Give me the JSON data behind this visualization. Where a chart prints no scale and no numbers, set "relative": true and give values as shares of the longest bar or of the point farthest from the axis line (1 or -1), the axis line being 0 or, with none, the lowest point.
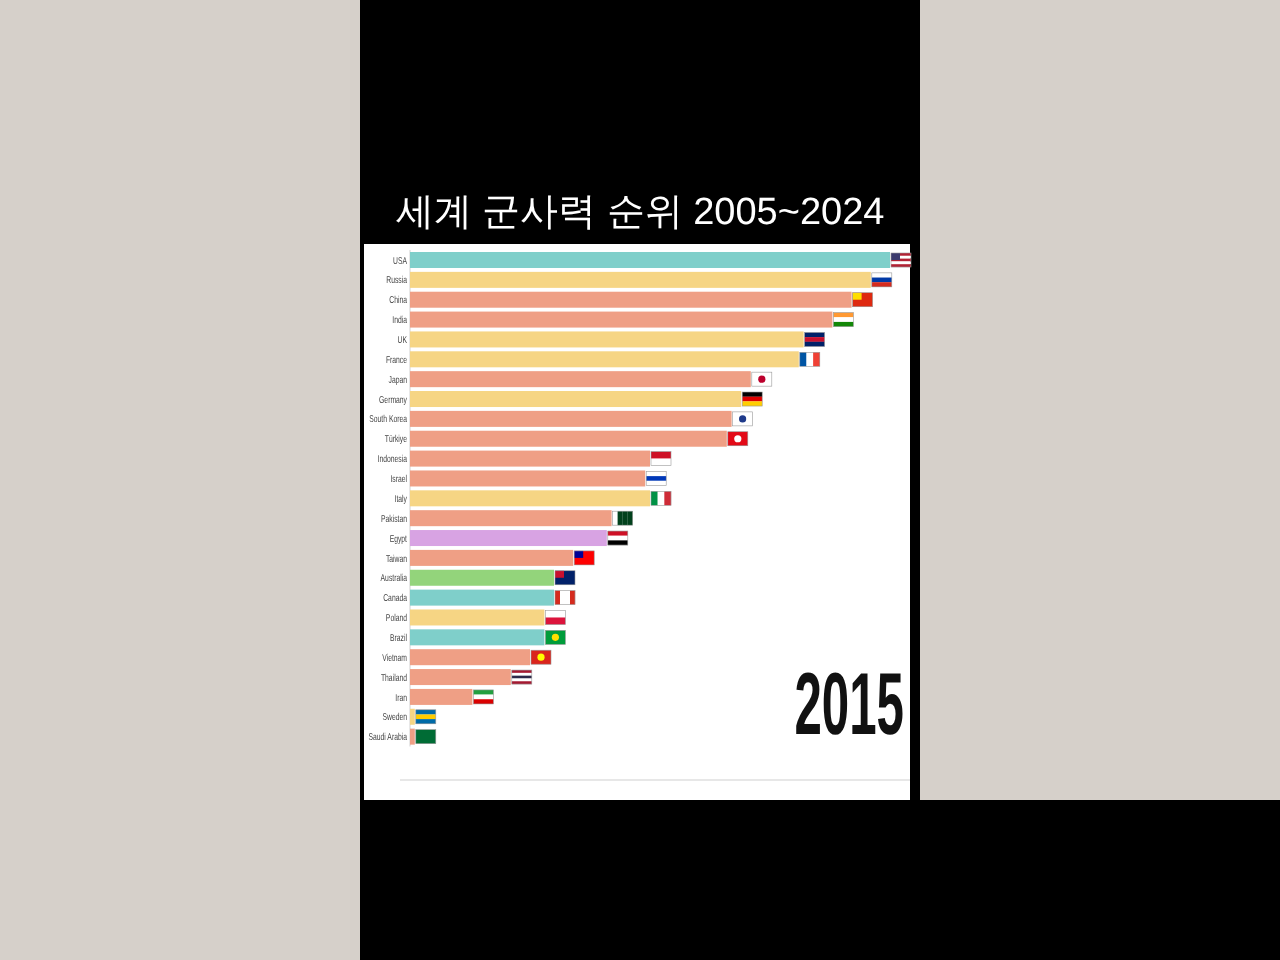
{
  "chart_data": {
    "type": "bar",
    "orientation": "horizontal",
    "relative": true,
    "title": "세계 군사력 순위 2005~2024",
    "categories": [
      "USA",
      "Russia",
      "China",
      "India",
      "UK",
      "France",
      "Japan",
      "Germany",
      "South Korea",
      "Türkiye",
      "Indonesia",
      "Israel",
      "Italy",
      "Pakistan",
      "Egypt",
      "Taiwan",
      "Australia",
      "Canada",
      "Poland",
      "Brazil",
      "Vietnam",
      "Thailand",
      "Iran",
      "Sweden",
      "Saudi Arabia"
    ],
    "values": [
      1,
      0.96,
      0.92,
      0.88,
      0.82,
      0.81,
      0.71,
      0.69,
      0.67,
      0.66,
      0.5,
      0.49,
      0.5,
      0.42,
      0.41,
      0.34,
      0.3,
      0.3,
      0.28,
      0.28,
      0.25,
      0.21,
      0.13,
      0.01,
      0.01
    ],
    "colors": [
      "#7fcfca",
      "#f6d584",
      "#ef9f85",
      "#ef9f85",
      "#f6d584",
      "#f6d584",
      "#ef9f85",
      "#f6d584",
      "#ef9f85",
      "#ef9f85",
      "#ef9f85",
      "#ef9f85",
      "#f6d584",
      "#ef9f85",
      "#d8a3e3",
      "#ef9f85",
      "#93d47b",
      "#7fcfca",
      "#f6d584",
      "#7fcfca",
      "#ef9f85",
      "#ef9f85",
      "#ef9f85",
      "#f6d584",
      "#ef9f85"
    ],
    "annotations": [
      "2015"
    ]
  }
}
